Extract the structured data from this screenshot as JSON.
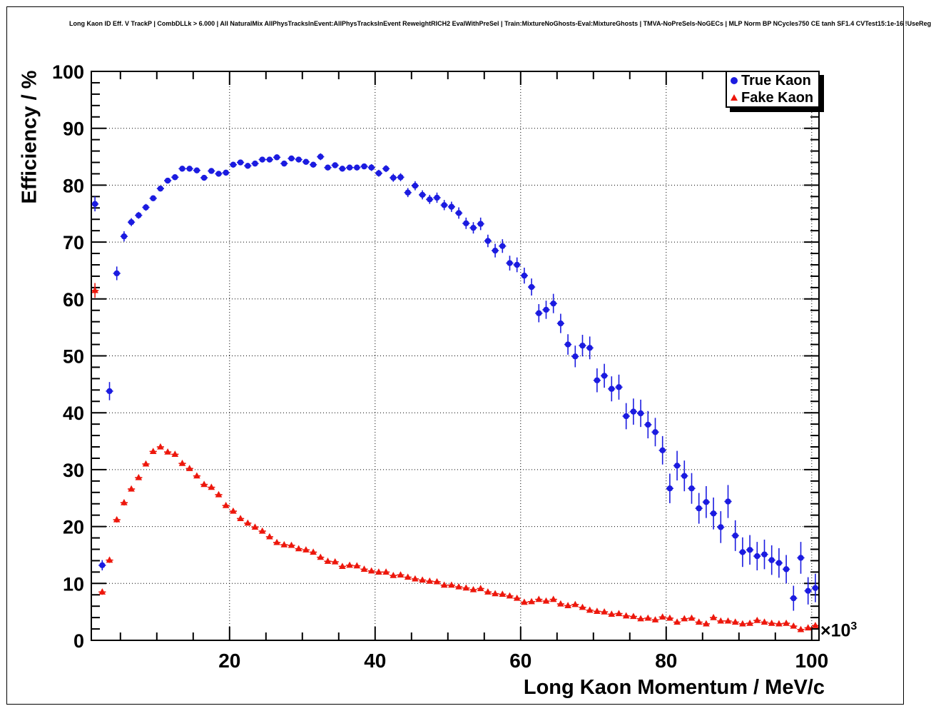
{
  "title": "Long Kaon ID Eff. V TrackP | CombDLLk > 6.000 | All NaturalMix AllPhysTracksInEvent:AllPhysTracksInEvent ReweightRICH2 EvalWithPreSel | Train:MixtureNoGhosts-Eval:MixtureGhosts | TMVA-NoPreSels-NoGECs | MLP Norm BP NCycles750 CE tanh SF1.4 CVTest15:1e-16 !UseReg",
  "x_exponent_base": "×10",
  "x_exponent_power": "3",
  "chart_data": {
    "type": "scatter",
    "title": "Long Kaon ID Eff. V TrackP | CombDLLk > 6.000 | All NaturalMix AllPhysTracksInEvent:AllPhysTracksInEvent ReweightRICH2 EvalWithPreSel | Train:MixtureNoGhosts-Eval:MixtureGhosts | TMVA-NoPreSels-NoGECs | MLP Norm BP NCycles750 CE tanh SF1.4 CVTest15:1e-16 !UseReg",
    "xlabel": "Long Kaon Momentum / MeV/c",
    "ylabel": "Efficiency / %",
    "x_axis_multiplier": "×10³",
    "xlim": [
      1,
      101
    ],
    "ylim": [
      0,
      100
    ],
    "x_major_ticks": [
      20,
      40,
      60,
      80,
      100
    ],
    "x_minor_step": 5,
    "y_major_ticks": [
      0,
      10,
      20,
      30,
      40,
      50,
      60,
      70,
      80,
      90,
      100
    ],
    "y_minor_step": 2,
    "grid": "dotted lines at major ticks, both axes",
    "legend_position": "top-right",
    "x_bin_half_width": 0.5,
    "x": [
      1.5,
      2.5,
      3.5,
      4.5,
      5.5,
      6.5,
      7.5,
      8.5,
      9.5,
      10.5,
      11.5,
      12.5,
      13.5,
      14.5,
      15.5,
      16.5,
      17.5,
      18.5,
      19.5,
      20.5,
      21.5,
      22.5,
      23.5,
      24.5,
      25.5,
      26.5,
      27.5,
      28.5,
      29.5,
      30.5,
      31.5,
      32.5,
      33.5,
      34.5,
      35.5,
      36.5,
      37.5,
      38.5,
      39.5,
      40.5,
      41.5,
      42.5,
      43.5,
      44.5,
      45.5,
      46.5,
      47.5,
      48.5,
      49.5,
      50.5,
      51.5,
      52.5,
      53.5,
      54.5,
      55.5,
      56.5,
      57.5,
      58.5,
      59.5,
      60.5,
      61.5,
      62.5,
      63.5,
      64.5,
      65.5,
      66.5,
      67.5,
      68.5,
      69.5,
      70.5,
      71.5,
      72.5,
      73.5,
      74.5,
      75.5,
      76.5,
      77.5,
      78.5,
      79.5,
      80.5,
      81.5,
      82.5,
      83.5,
      84.5,
      85.5,
      86.5,
      87.5,
      88.5,
      89.5,
      90.5,
      91.5,
      92.5,
      93.5,
      94.5,
      95.5,
      96.5,
      97.5,
      98.5,
      99.5,
      100.5
    ],
    "series": [
      {
        "name": "True Kaon",
        "marker": "filled-circle",
        "color": "#1b1be0",
        "values": [
          76.7,
          13.2,
          43.8,
          64.5,
          71.0,
          73.5,
          74.7,
          76.1,
          77.7,
          79.4,
          80.8,
          81.4,
          82.9,
          82.9,
          82.6,
          81.3,
          82.5,
          82.0,
          82.2,
          83.6,
          84.0,
          83.4,
          83.8,
          84.5,
          84.5,
          84.9,
          83.8,
          84.7,
          84.5,
          84.1,
          83.6,
          85.0,
          83.1,
          83.5,
          82.9,
          83.1,
          83.1,
          83.3,
          83.1,
          82.1,
          82.9,
          81.3,
          81.4,
          78.7,
          79.9,
          78.3,
          77.5,
          77.8,
          76.5,
          76.2,
          75.1,
          73.3,
          72.5,
          73.2,
          70.2,
          68.5,
          69.3,
          66.3,
          66.0,
          64.1,
          62.1,
          57.5,
          58.1,
          59.2,
          55.7,
          52.0,
          49.9,
          51.8,
          51.4,
          45.7,
          46.5,
          44.2,
          44.5,
          39.4,
          40.2,
          39.9,
          37.9,
          36.6,
          33.4,
          26.7,
          30.7,
          28.9,
          26.7,
          23.2,
          24.3,
          22.3,
          19.9,
          24.4,
          18.4,
          15.5,
          15.9,
          14.8,
          15.1,
          14.1,
          13.6,
          12.5,
          7.4,
          14.5,
          8.7,
          9.2
        ],
        "y_errors": [
          1.3,
          0.9,
          1.6,
          1.2,
          0.9,
          0.7,
          0.6,
          0.6,
          0.5,
          0.5,
          0.5,
          0.5,
          0.5,
          0.5,
          0.5,
          0.5,
          0.5,
          0.5,
          0.5,
          0.5,
          0.5,
          0.5,
          0.5,
          0.5,
          0.5,
          0.5,
          0.5,
          0.5,
          0.5,
          0.5,
          0.5,
          0.6,
          0.5,
          0.5,
          0.5,
          0.5,
          0.5,
          0.5,
          0.6,
          0.6,
          0.6,
          0.7,
          0.7,
          0.8,
          0.8,
          0.8,
          0.8,
          0.9,
          0.9,
          0.9,
          1.0,
          1.0,
          1.0,
          1.1,
          1.1,
          1.2,
          1.2,
          1.3,
          1.3,
          1.4,
          1.5,
          1.6,
          1.6,
          1.7,
          1.7,
          1.8,
          1.9,
          1.9,
          2.0,
          2.1,
          2.1,
          2.2,
          2.2,
          2.3,
          2.3,
          2.4,
          2.4,
          2.5,
          2.5,
          2.6,
          2.6,
          2.7,
          2.7,
          2.7,
          2.8,
          2.8,
          2.8,
          2.9,
          2.7,
          2.6,
          2.6,
          2.5,
          2.6,
          2.6,
          2.6,
          2.5,
          2.2,
          2.8,
          2.4,
          2.5
        ]
      },
      {
        "name": "Fake Kaon",
        "marker": "filled-triangle",
        "color": "#ed170c",
        "values": [
          61.5,
          8.5,
          14.1,
          21.2,
          24.2,
          26.6,
          28.6,
          31.0,
          33.2,
          34.0,
          33.1,
          32.7,
          31.1,
          30.2,
          28.9,
          27.4,
          26.9,
          25.6,
          23.7,
          22.7,
          21.4,
          20.6,
          19.9,
          19.2,
          18.2,
          17.2,
          16.8,
          16.7,
          16.1,
          15.9,
          15.5,
          14.6,
          13.9,
          13.8,
          13.0,
          13.2,
          13.1,
          12.5,
          12.2,
          12.0,
          12.0,
          11.4,
          11.5,
          11.1,
          10.8,
          10.6,
          10.4,
          10.3,
          9.7,
          9.7,
          9.4,
          9.2,
          8.9,
          9.1,
          8.5,
          8.2,
          8.1,
          7.8,
          7.4,
          6.7,
          6.8,
          7.2,
          6.9,
          7.2,
          6.4,
          6.1,
          6.3,
          5.8,
          5.3,
          5.1,
          5.0,
          4.6,
          4.7,
          4.3,
          4.2,
          3.8,
          3.9,
          3.6,
          4.1,
          3.9,
          3.2,
          3.8,
          3.9,
          3.2,
          2.9,
          4.0,
          3.4,
          3.4,
          3.2,
          2.9,
          3.0,
          3.5,
          3.2,
          3.0,
          2.9,
          3.0,
          2.5,
          1.9,
          2.2,
          2.6
        ],
        "y_errors": [
          1.3,
          0.5,
          0.5,
          0.5,
          0.5,
          0.4,
          0.4,
          0.4,
          0.4,
          0.4,
          0.4,
          0.4,
          0.4,
          0.4,
          0.4,
          0.4,
          0.4,
          0.4,
          0.4,
          0.4,
          0.4,
          0.4,
          0.4,
          0.4,
          0.4,
          0.3,
          0.3,
          0.3,
          0.3,
          0.3,
          0.3,
          0.3,
          0.3,
          0.3,
          0.3,
          0.3,
          0.3,
          0.3,
          0.3,
          0.3,
          0.3,
          0.3,
          0.3,
          0.3,
          0.3,
          0.3,
          0.3,
          0.3,
          0.3,
          0.3,
          0.3,
          0.3,
          0.3,
          0.3,
          0.3,
          0.3,
          0.3,
          0.3,
          0.3,
          0.3,
          0.3,
          0.3,
          0.3,
          0.3,
          0.3,
          0.3,
          0.3,
          0.3,
          0.3,
          0.3,
          0.3,
          0.3,
          0.3,
          0.3,
          0.3,
          0.3,
          0.3,
          0.3,
          0.3,
          0.3,
          0.3,
          0.3,
          0.3,
          0.3,
          0.3,
          0.4,
          0.3,
          0.3,
          0.3,
          0.3,
          0.3,
          0.3,
          0.3,
          0.3,
          0.3,
          0.3,
          0.3,
          0.3,
          0.3,
          0.4
        ]
      }
    ]
  },
  "legend": {
    "items": [
      {
        "label": "True Kaon",
        "marker": "blue-filled-circle"
      },
      {
        "label": "Fake Kaon",
        "marker": "red-filled-triangle"
      }
    ]
  }
}
